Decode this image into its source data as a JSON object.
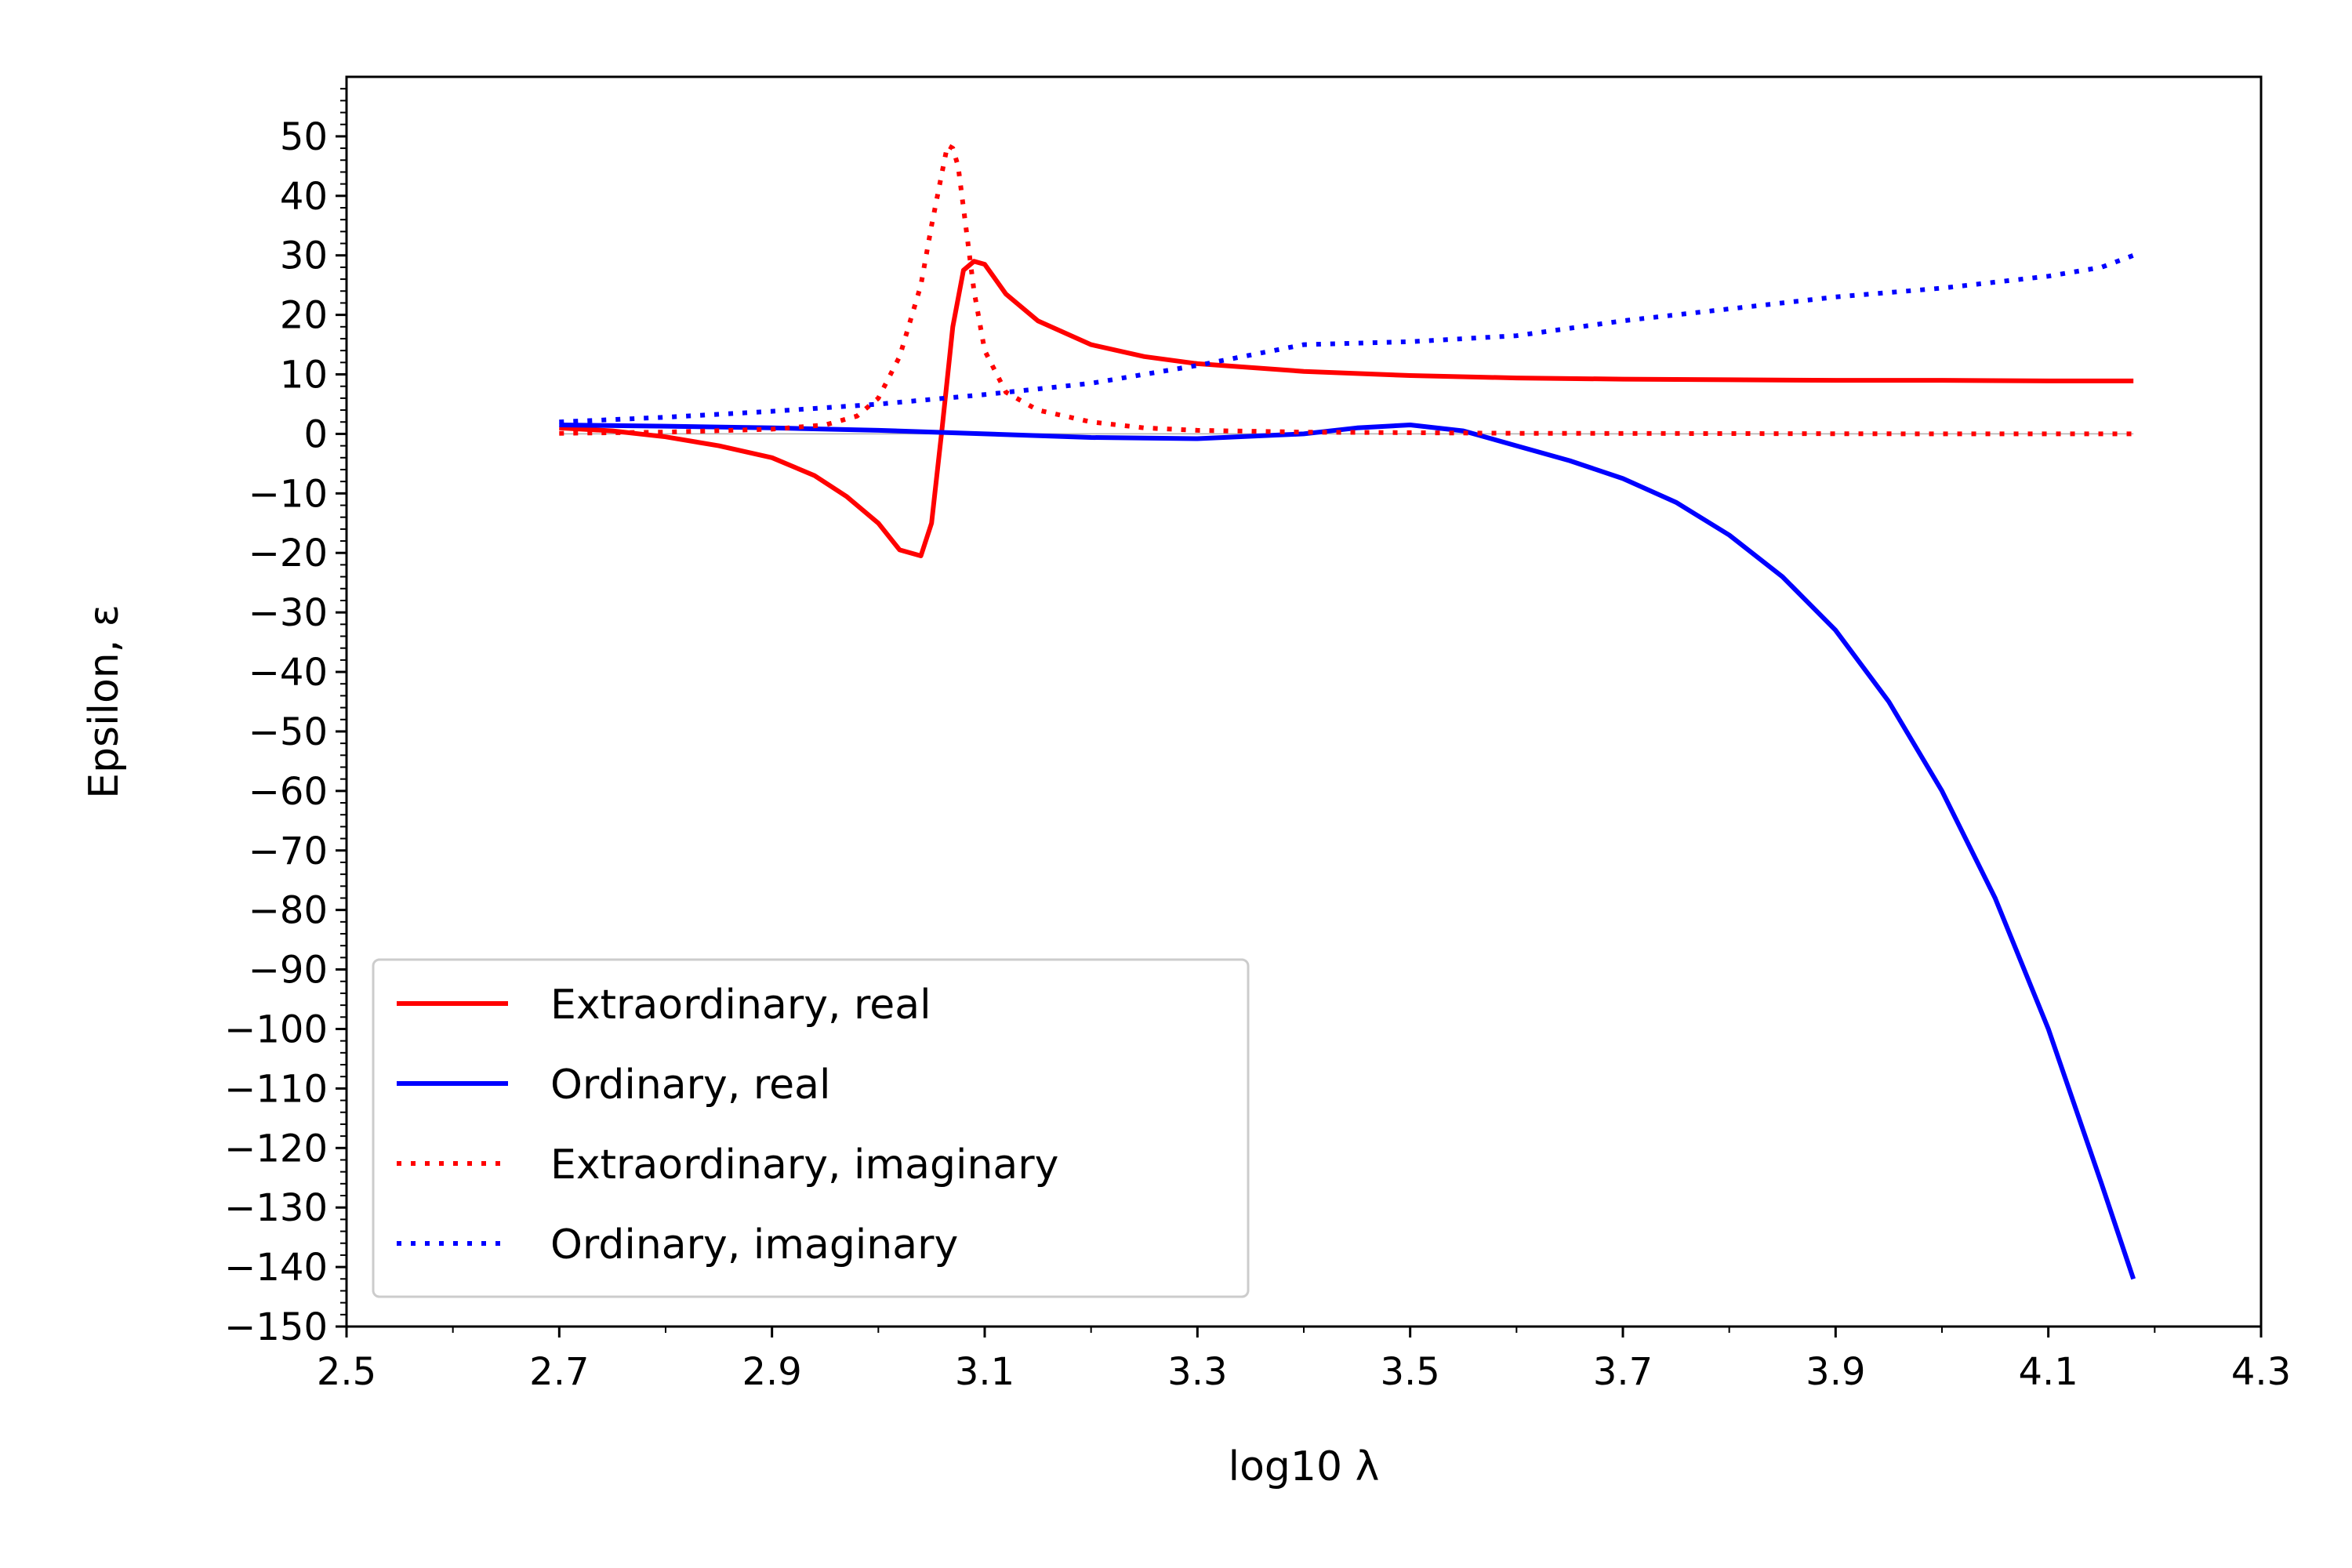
{
  "chart_data": {
    "type": "line",
    "title": "",
    "xlabel": "log10 λ",
    "ylabel": "Epsilon, ε",
    "xlim": [
      2.5,
      4.3
    ],
    "ylim": [
      -150,
      60
    ],
    "xticks": [
      2.5,
      2.7,
      2.9,
      3.1,
      3.3,
      3.5,
      3.7,
      3.9,
      4.1,
      4.3
    ],
    "xtick_labels": [
      "2.5",
      "2.7",
      "2.9",
      "3.1",
      "3.3",
      "3.5",
      "3.7",
      "3.9",
      "4.1",
      "4.3"
    ],
    "yticks": [
      50,
      40,
      30,
      20,
      10,
      0,
      -10,
      -20,
      -30,
      -40,
      -50,
      -60,
      -70,
      -80,
      -90,
      -100,
      -110,
      -120,
      -130,
      -140,
      -150
    ],
    "ytick_labels": [
      "50",
      "40",
      "30",
      "20",
      "10",
      "0",
      "−10",
      "−20",
      "−30",
      "−40",
      "−50",
      "−60",
      "−70",
      "−80",
      "−90",
      "−100",
      "−110",
      "−120",
      "−130",
      "−140",
      "−150"
    ],
    "grid": false,
    "legend_position": "lower-left",
    "series": [
      {
        "name": "Extraordinary, real",
        "color": "#ff0000",
        "style": "solid",
        "x": [
          2.7,
          2.75,
          2.8,
          2.85,
          2.9,
          2.94,
          2.97,
          3.0,
          3.02,
          3.04,
          3.05,
          3.06,
          3.07,
          3.08,
          3.09,
          3.1,
          3.11,
          3.12,
          3.15,
          3.2,
          3.25,
          3.3,
          3.4,
          3.5,
          3.6,
          3.7,
          3.8,
          3.9,
          4.0,
          4.1,
          4.18
        ],
        "y": [
          1.0,
          0.5,
          -0.5,
          -2.0,
          -4.0,
          -7.0,
          -10.5,
          -15.0,
          -19.5,
          -20.5,
          -15.0,
          1.0,
          18.0,
          27.5,
          29.0,
          28.5,
          26.0,
          23.5,
          19.0,
          15.0,
          13.0,
          11.8,
          10.5,
          9.8,
          9.4,
          9.2,
          9.1,
          9.0,
          9.0,
          8.9,
          8.9
        ]
      },
      {
        "name": "Ordinary, real",
        "color": "#0000ff",
        "style": "solid",
        "x": [
          2.7,
          2.8,
          2.9,
          3.0,
          3.1,
          3.2,
          3.3,
          3.4,
          3.45,
          3.5,
          3.55,
          3.6,
          3.65,
          3.7,
          3.75,
          3.8,
          3.85,
          3.9,
          3.95,
          4.0,
          4.05,
          4.1,
          4.15,
          4.18
        ],
        "y": [
          1.5,
          1.3,
          1.0,
          0.6,
          0.0,
          -0.6,
          -0.8,
          0.0,
          1.0,
          1.5,
          0.5,
          -2.0,
          -4.5,
          -7.5,
          -11.5,
          -17.0,
          -24.0,
          -33.0,
          -45.0,
          -60.0,
          -78.0,
          -100.0,
          -126.0,
          -142.0
        ]
      },
      {
        "name": "Extraordinary, imaginary",
        "color": "#ff0000",
        "style": "dotted",
        "x": [
          2.7,
          2.8,
          2.9,
          2.95,
          2.98,
          3.0,
          3.02,
          3.04,
          3.05,
          3.06,
          3.065,
          3.07,
          3.075,
          3.08,
          3.09,
          3.1,
          3.12,
          3.15,
          3.2,
          3.25,
          3.3,
          3.4,
          3.5,
          3.6,
          3.8,
          4.0,
          4.18
        ],
        "y": [
          0.1,
          0.3,
          0.8,
          1.5,
          3.0,
          6.0,
          13.0,
          25.0,
          35.0,
          44.0,
          48.5,
          48.0,
          45.0,
          38.0,
          24.0,
          14.0,
          7.0,
          4.0,
          2.0,
          1.0,
          0.6,
          0.3,
          0.2,
          0.1,
          0.05,
          0.0,
          0.0
        ]
      },
      {
        "name": "Ordinary, imaginary",
        "color": "#0000ff",
        "style": "dotted",
        "x": [
          2.7,
          2.8,
          2.9,
          3.0,
          3.1,
          3.2,
          3.3,
          3.4,
          3.5,
          3.6,
          3.7,
          3.8,
          3.9,
          4.0,
          4.05,
          4.1,
          4.15,
          4.18
        ],
        "y": [
          2.0,
          2.8,
          3.8,
          5.0,
          6.6,
          8.5,
          11.5,
          15.0,
          15.5,
          16.5,
          19.0,
          21.0,
          23.0,
          24.5,
          25.5,
          26.5,
          28.0,
          30.0
        ]
      }
    ]
  }
}
